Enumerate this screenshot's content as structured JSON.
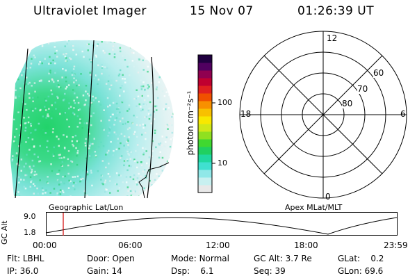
{
  "header": {
    "instrument": "Ultraviolet Imager",
    "date": "15 Nov 07",
    "time": "01:26:39 UT"
  },
  "colorbar": {
    "label": "photon cm⁻²s⁻¹",
    "ticks": [
      "100",
      "10"
    ],
    "scale": "log",
    "colors": [
      "#e8e8e8",
      "#c8f0f0",
      "#90e8e8",
      "#40e0d0",
      "#20d8a0",
      "#20d060",
      "#40d830",
      "#90e020",
      "#d0e818",
      "#f8e800",
      "#f8c000",
      "#f89000",
      "#f05000",
      "#e02020",
      "#c00030",
      "#900050",
      "#500060",
      "#200040"
    ]
  },
  "polar_plot": {
    "label_top": "12",
    "label_left": "18",
    "label_right": "6",
    "label_bottom": "0",
    "lat_labels": [
      "60",
      "70",
      "80"
    ]
  },
  "timeline": {
    "left_label": "Geographic Lat/Lon",
    "right_label": "Apex MLat/MLT",
    "y_axis_label": "GC Alt",
    "y_max": "9.0",
    "y_min": "1.8",
    "x_ticks": [
      "00:00",
      "06:00",
      "12:00",
      "18:00",
      "23:59"
    ],
    "marker_time": "01:26:39"
  },
  "info": {
    "flt_label": "Flt:",
    "flt_value": "LBHL",
    "ip_label": "IP:",
    "ip_value": "36.0",
    "door_label": "Door:",
    "door_value": "Open",
    "gain_label": "Gain:",
    "gain_value": "14",
    "mode_label": "Mode:",
    "mode_value": "Normal",
    "dsp_label": "Dsp:",
    "dsp_value": "6.1",
    "gcalt_label": "GC Alt:",
    "gcalt_value": "3.7 Re",
    "seq_label": "Seq:",
    "seq_value": "39",
    "glat_label": "GLat:",
    "glat_value": "0.2",
    "glon_label": "GLon:",
    "glon_value": "69.6"
  }
}
